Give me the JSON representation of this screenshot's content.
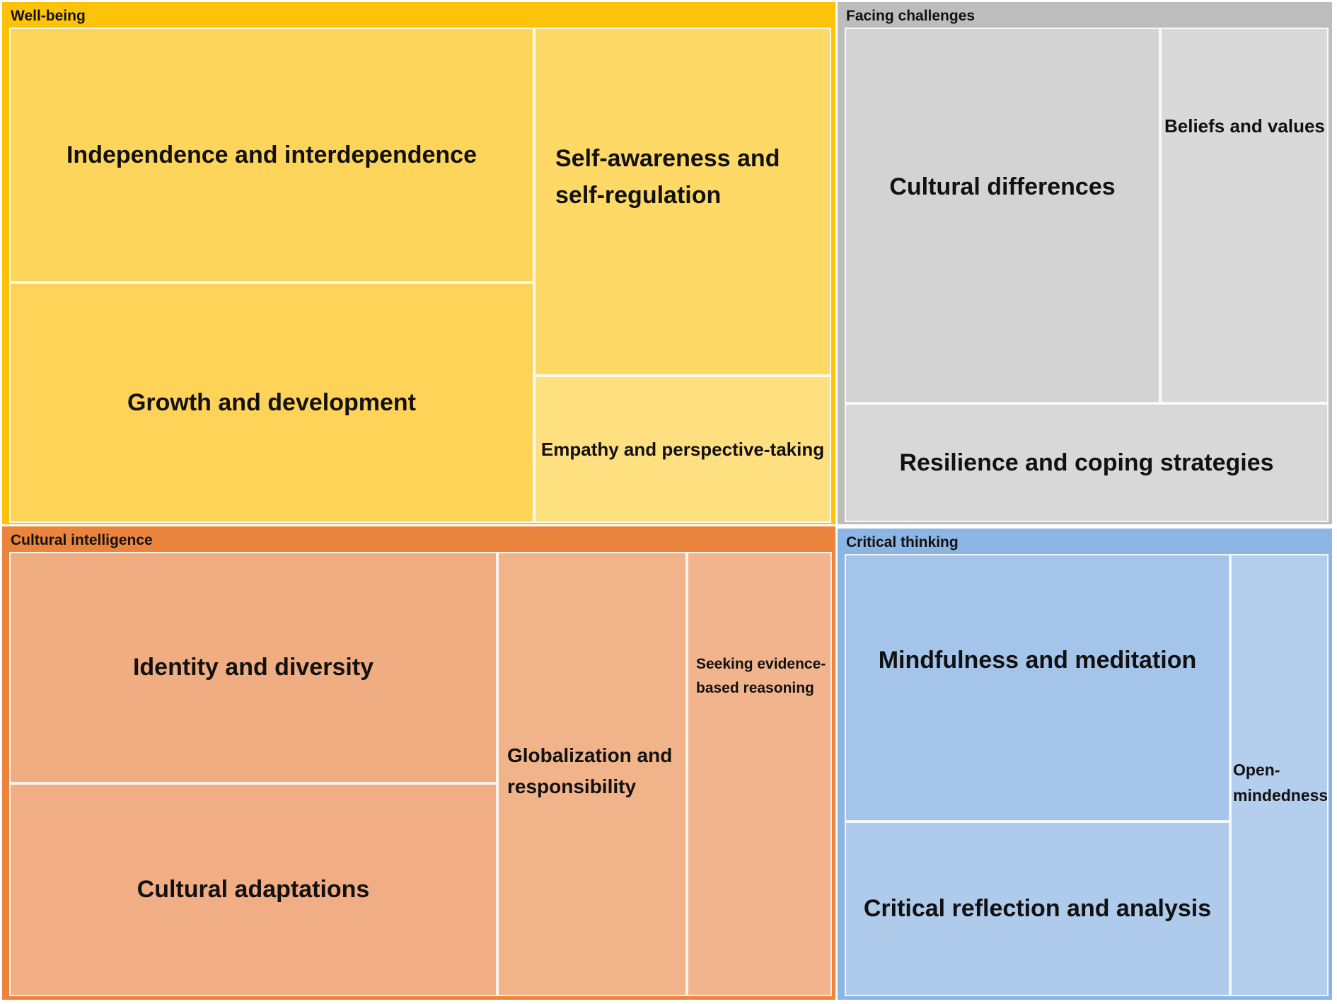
{
  "chart_data": {
    "type": "treemap",
    "groups": [
      {
        "name": "Well-being",
        "color": "#fdc20a",
        "tile_color": "#fed55c",
        "items": [
          {
            "label": "Independence and interdependence"
          },
          {
            "label": "Growth and development"
          },
          {
            "label": "Self-awareness and self-regulation"
          },
          {
            "label": "Empathy and perspective-taking"
          }
        ]
      },
      {
        "name": "Facing challenges",
        "color": "#bdbdbd",
        "tile_color": "#d6d6d6",
        "items": [
          {
            "label": "Cultural differences"
          },
          {
            "label": "Beliefs and values"
          },
          {
            "label": "Resilience and coping strategies"
          }
        ]
      },
      {
        "name": "Cultural intelligence",
        "color": "#eb853e",
        "tile_color": "#f1ae84",
        "items": [
          {
            "label": "Identity and diversity"
          },
          {
            "label": "Cultural adaptations"
          },
          {
            "label": "Globalization and responsibility"
          },
          {
            "label": "Seeking evidence-based reasoning"
          }
        ]
      },
      {
        "name": "Critical thinking",
        "color": "#8db5e3",
        "tile_color": "#a9c8ea",
        "items": [
          {
            "label": "Mindfulness and meditation"
          },
          {
            "label": "Critical reflection and analysis"
          },
          {
            "label": "Open-mindedness"
          }
        ]
      }
    ]
  }
}
